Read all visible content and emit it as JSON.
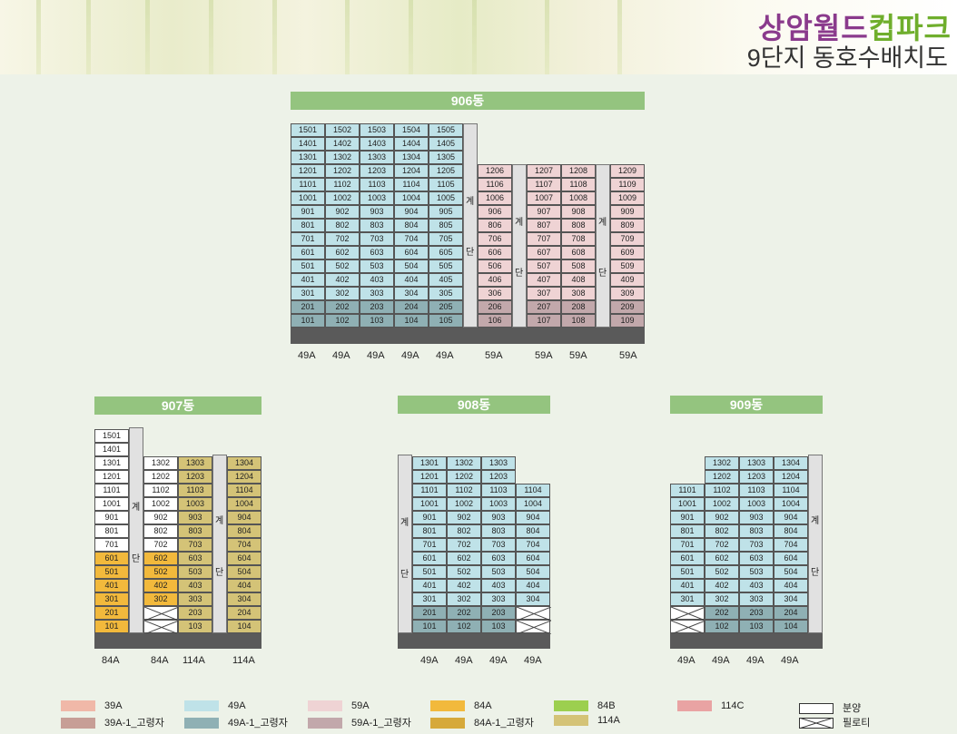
{
  "header": {
    "brand_part1": "상암월드",
    "brand_part2": "컵파크",
    "subtitle": "9단지 동호수배치도"
  },
  "stair_chars": [
    "계",
    "단"
  ],
  "colors": {
    "49A": "#bfe2e8",
    "49A-1": "#8fb0b4",
    "59A": "#efd3d4",
    "59A-1": "#c2a8ab",
    "84A": "#f2b93c",
    "84A-1": "#d6a93a",
    "84B": "#9ccf4f",
    "114A": "#d4c377",
    "114C": "#e9a3a3",
    "sale": "#ffffff"
  },
  "buildings": {
    "b906": {
      "label": "906동",
      "types": [
        "49A",
        "49A",
        "49A",
        "49A",
        "49A",
        "59A",
        "59A",
        "59A",
        "59A"
      ]
    },
    "b907": {
      "label": "907동",
      "types": [
        "84A",
        "84A",
        "114A",
        "114A"
      ]
    },
    "b908": {
      "label": "908동",
      "types": [
        "49A",
        "49A",
        "49A",
        "49A"
      ]
    },
    "b909": {
      "label": "909동",
      "types": [
        "49A",
        "49A",
        "49A",
        "49A"
      ]
    }
  },
  "legend": {
    "r1c1": "39A",
    "r2c1": "39A-1_고령자",
    "r1c2": "49A",
    "r2c2": "49A-1_고령자",
    "r1c3": "59A",
    "r2c3": "59A-1_고령자",
    "r1c4": "84A",
    "r2c4": "84A-1_고령자",
    "r1c5": "84B",
    "r2c5": "114A",
    "r1c6": "114C",
    "r1c7": "분양",
    "r2c7": "필로티"
  }
}
